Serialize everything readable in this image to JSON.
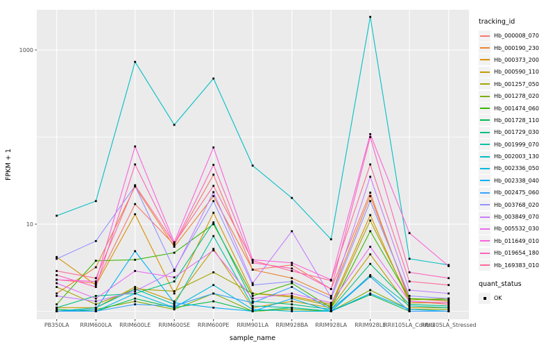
{
  "chart_data": {
    "type": "line",
    "title": "",
    "xlabel": "sample_name",
    "ylabel": "FPKM + 1",
    "y_scale": "log10",
    "ylim": [
      1,
      3000
    ],
    "y_tick_labels": [
      "1000",
      "10"
    ],
    "y_tick_values": [
      1000,
      10
    ],
    "y_minor_values": [
      100,
      1
    ],
    "grid": "on",
    "legend_position": "right",
    "legend_titles": {
      "series": "tracking_id",
      "quant": "quant_status"
    },
    "quant_status_items": [
      "OK"
    ],
    "panel_bg": "#EBEBEB",
    "grid_color": "#FFFFFF",
    "point_color": "#000000",
    "tick_text_color": "#4D4D4D",
    "legend_key_bg": "#F2F2F2",
    "categories": [
      "PB350LA",
      "RRIM600LA",
      "RRIM600LE",
      "RRIM600SE",
      "RRIM600PE",
      "RRIM901LA",
      "RRIM928BA",
      "RRIM928LA",
      "RRIM928LE",
      "RRII105LA_Control",
      "RRII105LA_Stressed"
    ],
    "series": [
      {
        "name": "Hb_000008_070",
        "color": "#F8766D",
        "values": [
          2.3,
          2.1,
          17,
          5.8,
          37,
          3.0,
          3.4,
          1.8,
          23,
          1.3,
          1.2
        ]
      },
      {
        "name": "Hb_000190_230",
        "color": "#EA8331",
        "values": [
          1.6,
          3.2,
          27,
          5.5,
          21,
          3.0,
          2.4,
          1.5,
          21,
          1.4,
          1.3
        ]
      },
      {
        "name": "Hb_000373_200",
        "color": "#D89000",
        "values": [
          4.2,
          2.0,
          13,
          1.6,
          13.5,
          1.6,
          1.5,
          1.2,
          12.7,
          1.25,
          1.25
        ]
      },
      {
        "name": "Hb_000590_110",
        "color": "#C09B00",
        "values": [
          1.1,
          1.1,
          1.9,
          1.3,
          5.2,
          1.1,
          1.3,
          1.1,
          4.5,
          1.1,
          1.1
        ]
      },
      {
        "name": "Hb_001257_050",
        "color": "#A3A500",
        "values": [
          1.9,
          1.2,
          1.8,
          1.7,
          2.8,
          1.6,
          1.45,
          1.15,
          11,
          1.35,
          1.4
        ]
      },
      {
        "name": "Hb_001278_020",
        "color": "#7CAE00",
        "values": [
          1.0,
          1.05,
          1.3,
          1.05,
          1.6,
          1.0,
          1.05,
          1.0,
          1.75,
          1.05,
          1.05
        ]
      },
      {
        "name": "Hb_001474_060",
        "color": "#39B600",
        "values": [
          1.2,
          3.8,
          3.9,
          4.7,
          10,
          1.5,
          2.1,
          1.1,
          8.3,
          1.4,
          1.35
        ]
      },
      {
        "name": "Hb_001728_110",
        "color": "#00BB4E",
        "values": [
          1.05,
          1.0,
          1.4,
          1.1,
          1.3,
          1.0,
          1.1,
          1.0,
          1.55,
          1.0,
          1.0
        ]
      },
      {
        "name": "Hb_001729_030",
        "color": "#00BF7D",
        "values": [
          1.1,
          1.5,
          1.6,
          2.2,
          10.5,
          1.3,
          1.2,
          1.05,
          3.5,
          1.2,
          1.15
        ]
      },
      {
        "name": "Hb_001999_070",
        "color": "#00C1A3",
        "values": [
          1.0,
          1.1,
          1.8,
          1.2,
          7.3,
          1.15,
          1.1,
          1.0,
          2.6,
          1.15,
          1.1
        ]
      },
      {
        "name": "Hb_002003_130",
        "color": "#00BFC4",
        "values": [
          12.5,
          18.4,
          730,
          138,
          470,
          47,
          20,
          6.7,
          2400,
          4.0,
          3.4
        ]
      },
      {
        "name": "Hb_002336_050",
        "color": "#00BAE0",
        "values": [
          1.0,
          1.0,
          1.6,
          1.1,
          2.0,
          1.05,
          1.0,
          1.0,
          2.5,
          1.0,
          1.0
        ]
      },
      {
        "name": "Hb_002338_040",
        "color": "#00B0F6",
        "values": [
          1.0,
          1.05,
          4.9,
          1.25,
          1.1,
          1.0,
          1.4,
          1.0,
          1.6,
          1.05,
          1.0
        ]
      },
      {
        "name": "Hb_002475_060",
        "color": "#35A2FF",
        "values": [
          1.0,
          1.0,
          1.2,
          1.15,
          1.6,
          1.25,
          1.9,
          1.05,
          2.5,
          1.0,
          1.0
        ]
      },
      {
        "name": "Hb_003768_020",
        "color": "#9590FF",
        "values": [
          4.0,
          6.4,
          27.5,
          3.0,
          18.4,
          2.0,
          2.2,
          1.4,
          18.4,
          1.5,
          1.4
        ]
      },
      {
        "name": "Hb_003849_070",
        "color": "#C77CFF",
        "values": [
          1.5,
          1.3,
          1.7,
          2.9,
          23.3,
          2.1,
          8.3,
          1.45,
          35,
          1.75,
          1.6
        ]
      },
      {
        "name": "Hb_005532_030",
        "color": "#E76BF3",
        "values": [
          2.1,
          1.4,
          2.9,
          2.45,
          5.0,
          1.4,
          1.6,
          1.25,
          5.5,
          1.3,
          1.25
        ]
      },
      {
        "name": "Hb_011649_010",
        "color": "#FA62DB",
        "values": [
          2.3,
          2.2,
          78,
          6.2,
          76,
          3.9,
          3.6,
          2.3,
          108,
          7.9,
          3.3
        ]
      },
      {
        "name": "Hb_019654_180",
        "color": "#FF62BC",
        "values": [
          2.6,
          1.9,
          48.5,
          5.9,
          48,
          3.6,
          3.1,
          1.8,
          100,
          2.8,
          2.4
        ]
      },
      {
        "name": "Hb_169383_010",
        "color": "#FF6A98",
        "values": [
          2.9,
          2.4,
          28,
          6.0,
          27.5,
          3.8,
          2.9,
          2.25,
          48.5,
          2.2,
          2.0
        ]
      }
    ]
  }
}
